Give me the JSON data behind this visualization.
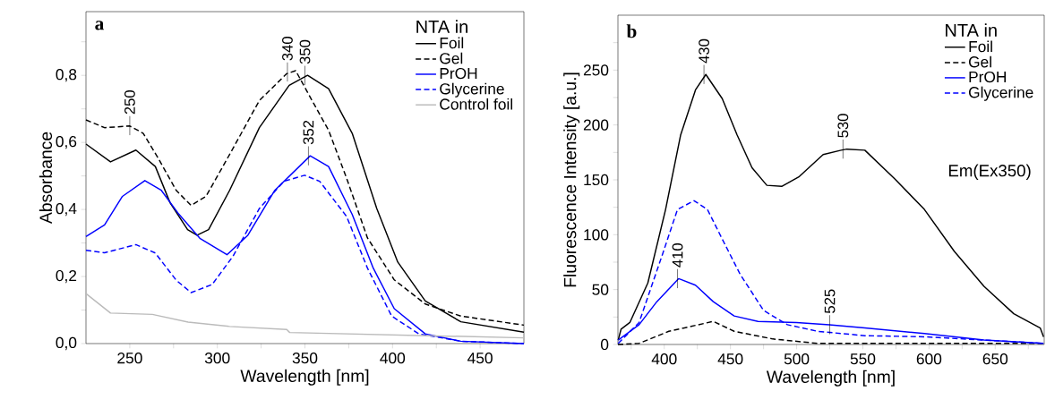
{
  "chart_data": [
    {
      "type": "line",
      "xlabel": "Wavelength [nm]",
      "ylabel": "Absorbance",
      "legend_title": "NTA in",
      "legend": "top right",
      "xlim": [
        225,
        475
      ],
      "ylim": [
        0,
        0.99
      ],
      "xticks": [
        250,
        {
          "value": 275,
          "label": null
        },
        300,
        {
          "value": 325,
          "label": null
        },
        350,
        {
          "value": 375,
          "label": null
        },
        400,
        {
          "value": 425,
          "label": null
        },
        450
      ],
      "yticks": [
        {
          "value": 0,
          "label": "0,0"
        },
        {
          "value": 0.1,
          "label": null
        },
        {
          "value": 0.2,
          "label": "0,2"
        },
        {
          "value": 0.3,
          "label": null
        },
        {
          "value": 0.4,
          "label": "0,4"
        },
        {
          "value": 0.5,
          "label": null
        },
        {
          "value": 0.6,
          "label": "0,6"
        },
        {
          "value": 0.7,
          "label": null
        },
        {
          "value": 0.8,
          "label": "0,8"
        },
        {
          "value": 0.9,
          "label": null
        }
      ],
      "annotations": [
        "a",
        {
          "text": "250",
          "x": 250,
          "y": 0.65
        },
        {
          "text": "340",
          "x": 340,
          "y": 0.81
        },
        {
          "text": "350",
          "x": 350,
          "y": 0.8
        },
        {
          "text": "352",
          "x": 352,
          "y": 0.56
        }
      ],
      "series": [
        {
          "name": "Foil",
          "color": "#000000",
          "line_style": "solid",
          "x": [
            225,
            239,
            253.5,
            264.6,
            273,
            283,
            288.4,
            295,
            307,
            324,
            341,
            351.5,
            363.5,
            377,
            391,
            403,
            418.7,
            439,
            475
          ],
          "values": [
            0.595,
            0.542,
            0.577,
            0.528,
            0.42,
            0.34,
            0.323,
            0.34,
            0.457,
            0.644,
            0.77,
            0.8,
            0.76,
            0.627,
            0.403,
            0.243,
            0.127,
            0.065,
            0.034
          ]
        },
        {
          "name": "Gel",
          "color": "#000000",
          "line_style": "dashed",
          "x": [
            225,
            235.6,
            250,
            257.7,
            266,
            276.5,
            285,
            293.5,
            307,
            324,
            339.6,
            344.7,
            355,
            363.5,
            373.8,
            385.7,
            401,
            418.7,
            439,
            475
          ],
          "values": [
            0.667,
            0.644,
            0.649,
            0.627,
            0.555,
            0.457,
            0.412,
            0.439,
            0.564,
            0.725,
            0.805,
            0.814,
            0.716,
            0.636,
            0.493,
            0.315,
            0.19,
            0.118,
            0.082,
            0.055
          ]
        },
        {
          "name": "PrOH",
          "color": "#0000ff",
          "line_style": "solid",
          "x": [
            225,
            235.6,
            245.8,
            258.6,
            268,
            278,
            290,
            305.5,
            317.4,
            332.8,
            353,
            363.5,
            377,
            389,
            401,
            418.7,
            439,
            475
          ],
          "values": [
            0.319,
            0.354,
            0.439,
            0.486,
            0.457,
            0.386,
            0.314,
            0.265,
            0.323,
            0.457,
            0.56,
            0.528,
            0.385,
            0.225,
            0.104,
            0.029,
            0.007,
            0.0
          ]
        },
        {
          "name": "Glycerine",
          "color": "#0000ff",
          "line_style": "dashed",
          "x": [
            225,
            235.6,
            253.5,
            264.6,
            276.5,
            285,
            297,
            309,
            324,
            338,
            349.8,
            358.4,
            373.8,
            385.7,
            399.5,
            415,
            439,
            475
          ],
          "values": [
            0.278,
            0.271,
            0.295,
            0.27,
            0.189,
            0.152,
            0.176,
            0.261,
            0.403,
            0.484,
            0.502,
            0.484,
            0.379,
            0.225,
            0.082,
            0.029,
            0.007,
            0.0
          ]
        },
        {
          "name": "Control foil",
          "color": "#bbbbbb",
          "line_style": "solid",
          "x": [
            225,
            239,
            262.9,
            283.3,
            307,
            339.6,
            341.3,
            475
          ],
          "values": [
            0.149,
            0.091,
            0.087,
            0.064,
            0.051,
            0.042,
            0.033,
            0.017
          ]
        }
      ]
    },
    {
      "type": "line",
      "xlabel": "Wavelength [nm]",
      "ylabel": "Fluorescence Intensity [a.u.]",
      "legend_title": "NTA in",
      "legend": "top right",
      "xlim": [
        365,
        687
      ],
      "ylim": [
        0,
        300
      ],
      "xticks": [
        {
          "value": 375,
          "label": null
        },
        400,
        {
          "value": 425,
          "label": null
        },
        450,
        {
          "value": 475,
          "label": null
        },
        500,
        {
          "value": 525,
          "label": null
        },
        550,
        {
          "value": 575,
          "label": null
        },
        600,
        {
          "value": 625,
          "label": null
        },
        650,
        {
          "value": 675,
          "label": null
        }
      ],
      "yticks": [
        0,
        {
          "value": 25,
          "label": null
        },
        50,
        {
          "value": 75,
          "label": null
        },
        100,
        {
          "value": 125,
          "label": null
        },
        150,
        {
          "value": 175,
          "label": null
        },
        200,
        {
          "value": 225,
          "label": null
        },
        250,
        {
          "value": 275,
          "label": null
        }
      ],
      "annotations": [
        "b",
        "Em(Ex350)",
        {
          "text": "430",
          "x": 430,
          "y": 246
        },
        {
          "text": "530",
          "x": 535,
          "y": 178
        },
        {
          "text": "410",
          "x": 410,
          "y": 60
        },
        {
          "text": "525",
          "x": 525,
          "y": 18
        }
      ],
      "series": [
        {
          "name": "Foil",
          "color": "#000000",
          "line_style": "solid",
          "x": [
            365.2,
            367.4,
            374,
            387.6,
            401,
            412.4,
            423.6,
            431.4,
            443.8,
            455,
            466.3,
            477.5,
            488.7,
            502,
            520,
            533.6,
            538,
            551.5,
            574,
            596.5,
            619,
            641.5,
            664,
            684,
            686.5
          ],
          "values": [
            4,
            14,
            20,
            56,
            123,
            191,
            232,
            246,
            224,
            191,
            161,
            145,
            144,
            153,
            173,
            177,
            178,
            177,
            151,
            123,
            85,
            53,
            28,
            15,
            7
          ]
        },
        {
          "name": "Gel",
          "color": "#000000",
          "line_style": "dashed",
          "x": [
            365,
            381,
            403.4,
            437,
            452.8,
            482,
            515.7,
            600,
            686.5
          ],
          "values": [
            0,
            1,
            12,
            21,
            12,
            5,
            1,
            1,
            1
          ]
        },
        {
          "name": "PrOH",
          "color": "#0000ff",
          "line_style": "solid",
          "x": [
            365.2,
            381,
            394.4,
            410.8,
            423.6,
            437,
            452.8,
            470.8,
            500,
            524.7,
            551.5,
            596.5,
            641.5,
            686.5
          ],
          "values": [
            4,
            18,
            39,
            60,
            54,
            39,
            26,
            21,
            20,
            18,
            15,
            10,
            4,
            1
          ]
        },
        {
          "name": "Glycerine",
          "color": "#0000ff",
          "line_style": "dashed",
          "x": [
            365.2,
            381,
            398.9,
            410,
            422.5,
            432.6,
            443.8,
            457.3,
            475,
            493,
            515.7,
            551.5,
            596.5,
            641.5,
            686.5
          ],
          "values": [
            1,
            20,
            83,
            123,
            131,
            123,
            96,
            64,
            31,
            18,
            12,
            8,
            7,
            4,
            1
          ]
        }
      ]
    }
  ]
}
